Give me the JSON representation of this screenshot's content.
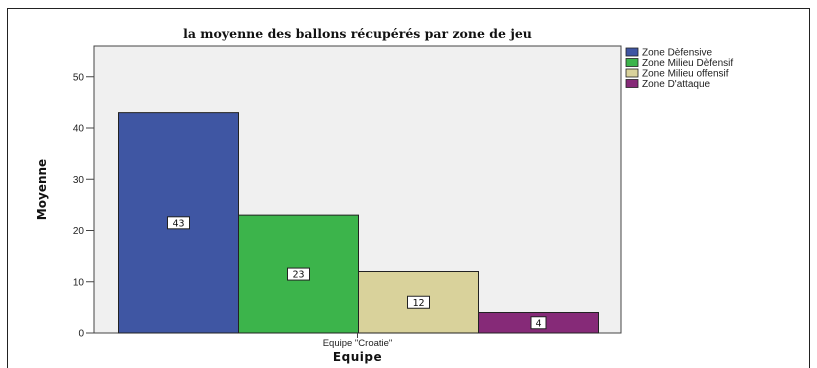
{
  "chart_data": {
    "type": "bar",
    "title": "la moyenne des ballons récupérés par zone de jeu",
    "xlabel": "Equipe",
    "ylabel": "Moyenne",
    "categories": [
      "Equipe  \"Croatie\""
    ],
    "series": [
      {
        "name": "Zone Dèfensive",
        "values": [
          43
        ],
        "color": "#3f56a3"
      },
      {
        "name": "Zone Milieu Dèfensif",
        "values": [
          23
        ],
        "color": "#3cb44b"
      },
      {
        "name": "Zone Milieu offensif",
        "values": [
          12
        ],
        "color": "#d9d29b"
      },
      {
        "name": "Zone D'attaque",
        "values": [
          4
        ],
        "color": "#862a78"
      }
    ],
    "ylim": [
      0,
      56
    ],
    "yticks": [
      0,
      10,
      20,
      30,
      40,
      50
    ],
    "grid": false,
    "legend": "top-right"
  }
}
